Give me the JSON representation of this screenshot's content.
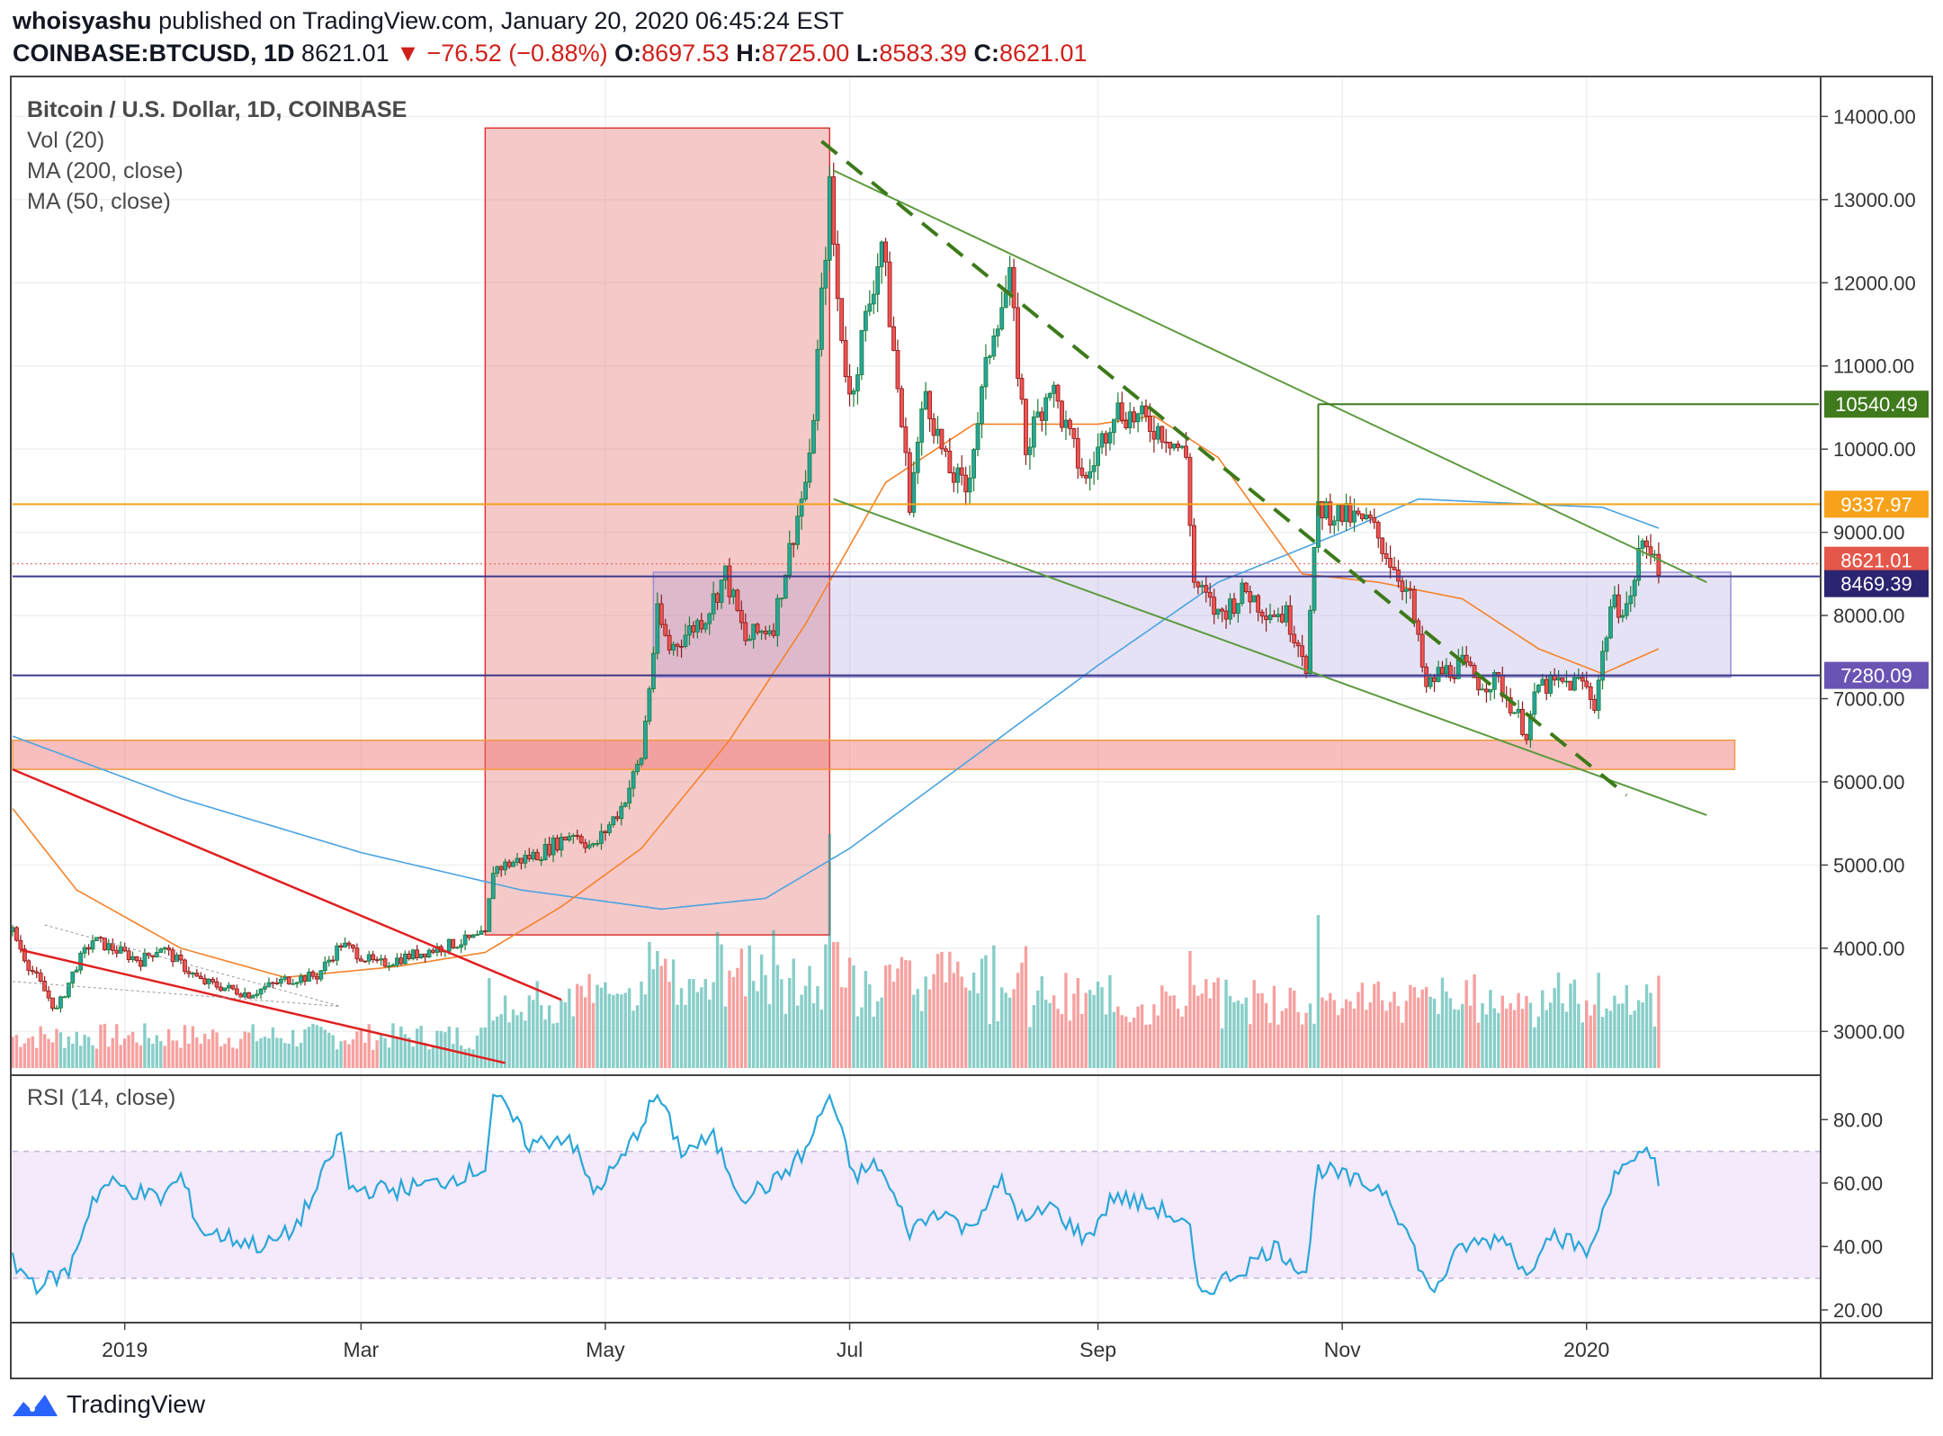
{
  "header": {
    "author": "whoisyashu",
    "published_text": "published on TradingView.com, January 20, 2020 06:45:24 EST",
    "symbol": "COINBASE:BTCUSD, 1D",
    "last_price": "8621.01",
    "change_arrow": "▼",
    "change": "−76.52 (−0.88%)",
    "open_label": "O:",
    "open": "8697.53",
    "high_label": "H:",
    "high": "8725.00",
    "low_label": "L:",
    "low": "8583.39",
    "close_label": "C:",
    "close": "8621.01"
  },
  "legend": {
    "title": "Bitcoin / U.S. Dollar, 1D, COINBASE",
    "vol": "Vol (20)",
    "ma200": "MA (200, close)",
    "ma50": "MA (50, close)",
    "rsi": "RSI (14, close)"
  },
  "footer": {
    "brand": "TradingView"
  },
  "colors": {
    "up": "#26a69a",
    "down": "#ef5350",
    "up_edge": "#1e7b3a",
    "down_edge": "#8b1a1a",
    "ma50": "#f5822a",
    "ma200": "#4aa3e0",
    "rsi": "#2aa6d8",
    "resistance": "#f5a31a",
    "support": "#3a3a8a",
    "channel": "#5b9a3e",
    "trendline": "#e02020",
    "label_green": "#3f7a1c",
    "label_orange": "#f7a21b",
    "label_red": "#e5574b",
    "label_navy": "#2b2470",
    "label_purple": "#6a54b3"
  },
  "chart_data": {
    "type": "candlestick",
    "title": "Bitcoin / U.S. Dollar, 1D, COINBASE",
    "price_axis": {
      "min": 2560,
      "max": 14480,
      "ticks": [
        "3000.00",
        "4000.00",
        "5000.00",
        "6000.00",
        "7000.00",
        "8000.00",
        "9000.00",
        "10000.00",
        "11000.00",
        "12000.00",
        "13000.00",
        "14000.00"
      ]
    },
    "time_axis": {
      "start": "2018-12-04",
      "end": "2020-02-28",
      "ticks": [
        {
          "label": "2019",
          "date": "2019-01-01"
        },
        {
          "label": "Mar",
          "date": "2019-03-01"
        },
        {
          "label": "May",
          "date": "2019-05-01"
        },
        {
          "label": "Jul",
          "date": "2019-07-01"
        },
        {
          "label": "Sep",
          "date": "2019-09-01"
        },
        {
          "label": "Nov",
          "date": "2019-11-01"
        },
        {
          "label": "2020",
          "date": "2020-01-01"
        }
      ]
    },
    "price_anchors": [
      [
        "2018-12-04",
        4200
      ],
      [
        "2018-12-08",
        3800
      ],
      [
        "2018-12-15",
        3250
      ],
      [
        "2018-12-20",
        3800
      ],
      [
        "2018-12-24",
        4100
      ],
      [
        "2019-01-05",
        3850
      ],
      [
        "2019-01-10",
        4020
      ],
      [
        "2019-01-20",
        3600
      ],
      [
        "2019-02-01",
        3450
      ],
      [
        "2019-02-10",
        3620
      ],
      [
        "2019-02-18",
        3670
      ],
      [
        "2019-02-24",
        4050
      ],
      [
        "2019-03-05",
        3800
      ],
      [
        "2019-03-20",
        4000
      ],
      [
        "2019-04-01",
        4150
      ],
      [
        "2019-04-03",
        4950
      ],
      [
        "2019-04-15",
        5150
      ],
      [
        "2019-04-23",
        5400
      ],
      [
        "2019-04-28",
        5200
      ],
      [
        "2019-05-05",
        5700
      ],
      [
        "2019-05-10",
        6300
      ],
      [
        "2019-05-14",
        8000
      ],
      [
        "2019-05-17",
        7600
      ],
      [
        "2019-05-26",
        8000
      ],
      [
        "2019-05-31",
        8500
      ],
      [
        "2019-06-05",
        7700
      ],
      [
        "2019-06-12",
        7900
      ],
      [
        "2019-06-17",
        9000
      ],
      [
        "2019-06-21",
        9800
      ],
      [
        "2019-06-26",
        13100
      ],
      [
        "2019-06-28",
        11800
      ],
      [
        "2019-07-01",
        10600
      ],
      [
        "2019-07-09",
        12500
      ],
      [
        "2019-07-16",
        9400
      ],
      [
        "2019-07-20",
        10700
      ],
      [
        "2019-07-25",
        9800
      ],
      [
        "2019-07-30",
        9500
      ],
      [
        "2019-08-06",
        11500
      ],
      [
        "2019-08-10",
        12000
      ],
      [
        "2019-08-14",
        10000
      ],
      [
        "2019-08-20",
        10800
      ],
      [
        "2019-08-25",
        10100
      ],
      [
        "2019-08-29",
        9600
      ],
      [
        "2019-09-05",
        10500
      ],
      [
        "2019-09-18",
        10200
      ],
      [
        "2019-09-23",
        9900
      ],
      [
        "2019-09-25",
        8400
      ],
      [
        "2019-10-01",
        8000
      ],
      [
        "2019-10-08",
        8300
      ],
      [
        "2019-10-12",
        8100
      ],
      [
        "2019-10-18",
        8000
      ],
      [
        "2019-10-22",
        7600
      ],
      [
        "2019-10-23",
        7400
      ],
      [
        "2019-10-26",
        9300
      ],
      [
        "2019-11-01",
        9200
      ],
      [
        "2019-11-08",
        9100
      ],
      [
        "2019-11-15",
        8500
      ],
      [
        "2019-11-18",
        8200
      ],
      [
        "2019-11-22",
        7100
      ],
      [
        "2019-11-25",
        7300
      ],
      [
        "2019-12-01",
        7400
      ],
      [
        "2019-12-05",
        7200
      ],
      [
        "2019-12-10",
        7200
      ],
      [
        "2019-12-17",
        6600
      ],
      [
        "2019-12-20",
        7150
      ],
      [
        "2019-12-31",
        7200
      ],
      [
        "2020-01-03",
        6950
      ],
      [
        "2020-01-07",
        8100
      ],
      [
        "2020-01-12",
        8150
      ],
      [
        "2020-01-14",
        8800
      ],
      [
        "2020-01-18",
        8800
      ],
      [
        "2020-01-19",
        8620
      ]
    ],
    "rsi_anchors": [
      [
        "2018-12-04",
        35
      ],
      [
        "2018-12-10",
        28
      ],
      [
        "2018-12-18",
        32
      ],
      [
        "2018-12-24",
        55
      ],
      [
        "2018-12-28",
        60
      ],
      [
        "2019-01-10",
        55
      ],
      [
        "2019-01-15",
        62
      ],
      [
        "2019-01-20",
        45
      ],
      [
        "2019-02-05",
        40
      ],
      [
        "2019-02-12",
        45
      ],
      [
        "2019-02-18",
        58
      ],
      [
        "2019-02-24",
        76
      ],
      [
        "2019-02-26",
        58
      ],
      [
        "2019-03-10",
        58
      ],
      [
        "2019-03-20",
        60
      ],
      [
        "2019-04-01",
        65
      ],
      [
        "2019-04-03",
        88
      ],
      [
        "2019-04-08",
        80
      ],
      [
        "2019-04-12",
        72
      ],
      [
        "2019-04-22",
        75
      ],
      [
        "2019-04-28",
        57
      ],
      [
        "2019-05-05",
        67
      ],
      [
        "2019-05-14",
        88
      ],
      [
        "2019-05-20",
        70
      ],
      [
        "2019-05-28",
        74
      ],
      [
        "2019-06-04",
        56
      ],
      [
        "2019-06-12",
        60
      ],
      [
        "2019-06-20",
        70
      ],
      [
        "2019-06-26",
        88
      ],
      [
        "2019-07-02",
        62
      ],
      [
        "2019-07-08",
        66
      ],
      [
        "2019-07-16",
        45
      ],
      [
        "2019-07-24",
        52
      ],
      [
        "2019-07-30",
        45
      ],
      [
        "2019-08-08",
        60
      ],
      [
        "2019-08-14",
        47
      ],
      [
        "2019-08-20",
        53
      ],
      [
        "2019-08-29",
        42
      ],
      [
        "2019-09-05",
        56
      ],
      [
        "2019-09-18",
        51
      ],
      [
        "2019-09-24",
        45
      ],
      [
        "2019-09-26",
        25
      ],
      [
        "2019-10-06",
        32
      ],
      [
        "2019-10-15",
        40
      ],
      [
        "2019-10-23",
        32
      ],
      [
        "2019-10-26",
        65
      ],
      [
        "2019-11-05",
        60
      ],
      [
        "2019-11-12",
        58
      ],
      [
        "2019-11-18",
        42
      ],
      [
        "2019-11-23",
        25
      ],
      [
        "2019-12-01",
        40
      ],
      [
        "2019-12-12",
        43
      ],
      [
        "2019-12-17",
        30
      ],
      [
        "2019-12-22",
        45
      ],
      [
        "2020-01-02",
        38
      ],
      [
        "2020-01-08",
        64
      ],
      [
        "2020-01-13",
        65
      ],
      [
        "2020-01-15",
        70
      ],
      [
        "2020-01-18",
        68
      ],
      [
        "2020-01-19",
        62
      ]
    ],
    "ma50_anchors": [
      [
        "2018-12-04",
        5680
      ],
      [
        "2018-12-20",
        4700
      ],
      [
        "2019-01-15",
        4000
      ],
      [
        "2019-02-10",
        3650
      ],
      [
        "2019-03-10",
        3780
      ],
      [
        "2019-04-01",
        3950
      ],
      [
        "2019-04-20",
        4500
      ],
      [
        "2019-05-10",
        5200
      ],
      [
        "2019-06-01",
        6500
      ],
      [
        "2019-06-20",
        7900
      ],
      [
        "2019-07-10",
        9600
      ],
      [
        "2019-08-01",
        10300
      ],
      [
        "2019-09-01",
        10300
      ],
      [
        "2019-09-15",
        10400
      ],
      [
        "2019-10-01",
        9900
      ],
      [
        "2019-10-22",
        8500
      ],
      [
        "2019-11-10",
        8400
      ],
      [
        "2019-12-01",
        8200
      ],
      [
        "2019-12-20",
        7600
      ],
      [
        "2020-01-05",
        7300
      ],
      [
        "2020-01-19",
        7600
      ]
    ],
    "ma200_anchors": [
      [
        "2018-12-04",
        6550
      ],
      [
        "2019-01-15",
        5800
      ],
      [
        "2019-03-01",
        5150
      ],
      [
        "2019-04-10",
        4700
      ],
      [
        "2019-05-15",
        4470
      ],
      [
        "2019-06-10",
        4600
      ],
      [
        "2019-07-01",
        5200
      ],
      [
        "2019-08-01",
        6300
      ],
      [
        "2019-09-01",
        7400
      ],
      [
        "2019-10-01",
        8400
      ],
      [
        "2019-11-01",
        9000
      ],
      [
        "2019-11-20",
        9400
      ],
      [
        "2020-01-05",
        9300
      ],
      [
        "2020-01-19",
        9050
      ]
    ],
    "horizontal_levels": [
      {
        "price": 9337.97,
        "label": "9337.97"
      },
      {
        "price": 8469.39,
        "label": "8469.39"
      },
      {
        "price": 7280.09,
        "label": "7280.09"
      },
      {
        "price": 10540.49,
        "label": "10540.49"
      }
    ],
    "current_price": {
      "price": 8621.01,
      "label": "8621.01"
    },
    "rsi_axis": {
      "min": 16,
      "max": 94,
      "ticks": [
        "20.00",
        "40.00",
        "60.00",
        "80.00"
      ],
      "band": [
        30,
        70
      ]
    }
  }
}
